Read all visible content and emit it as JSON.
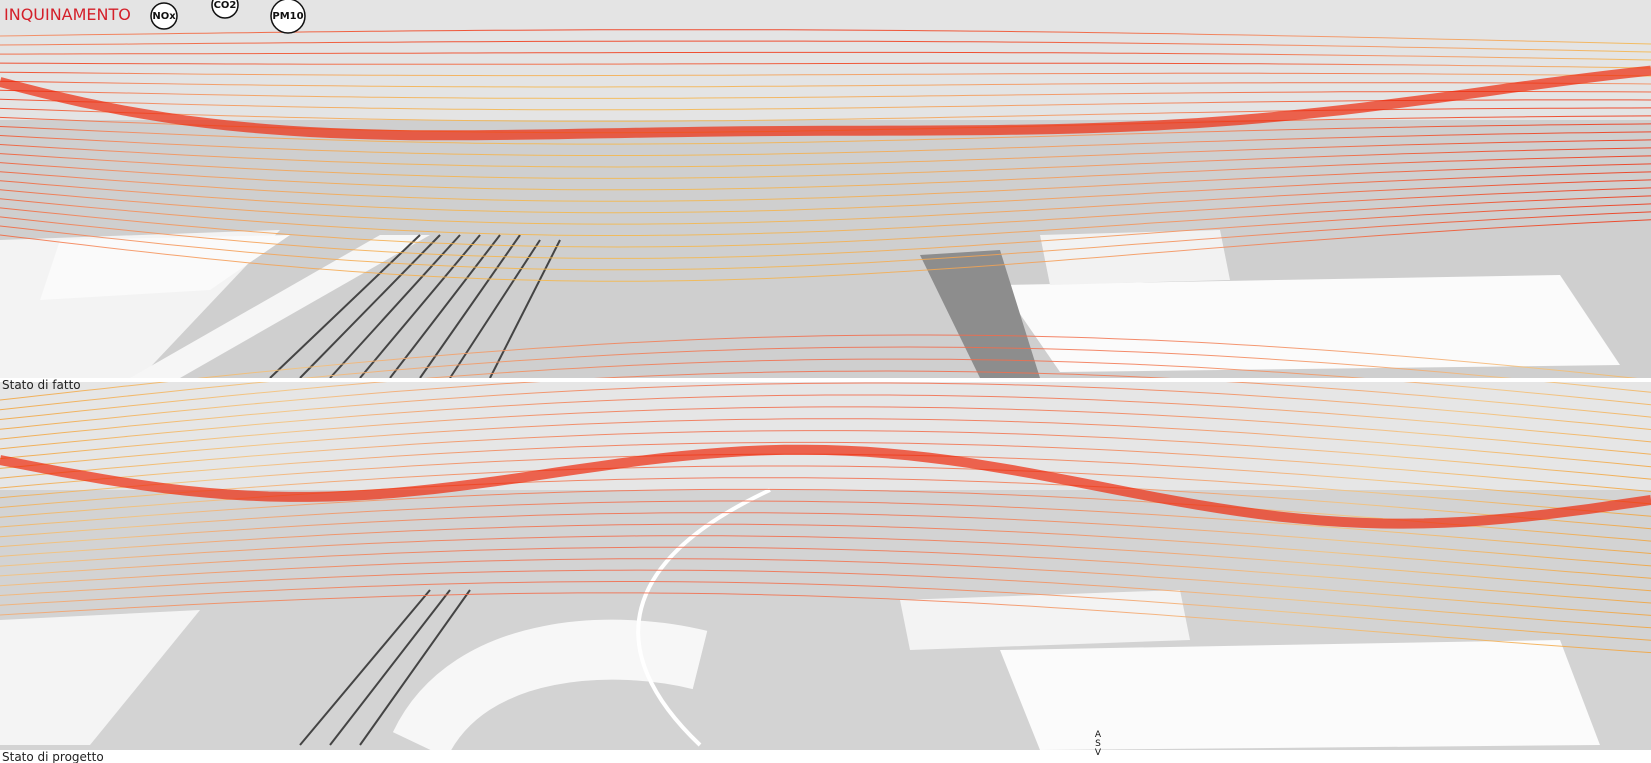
{
  "header": {
    "title": "INQUINAMENTO",
    "pollutants": [
      "NOx",
      "CO2",
      "PM10"
    ]
  },
  "panels": [
    {
      "label": "Stato di fatto"
    },
    {
      "label": "Stato di progetto"
    }
  ],
  "marker": {
    "letters": [
      "A",
      "S",
      "V"
    ]
  }
}
